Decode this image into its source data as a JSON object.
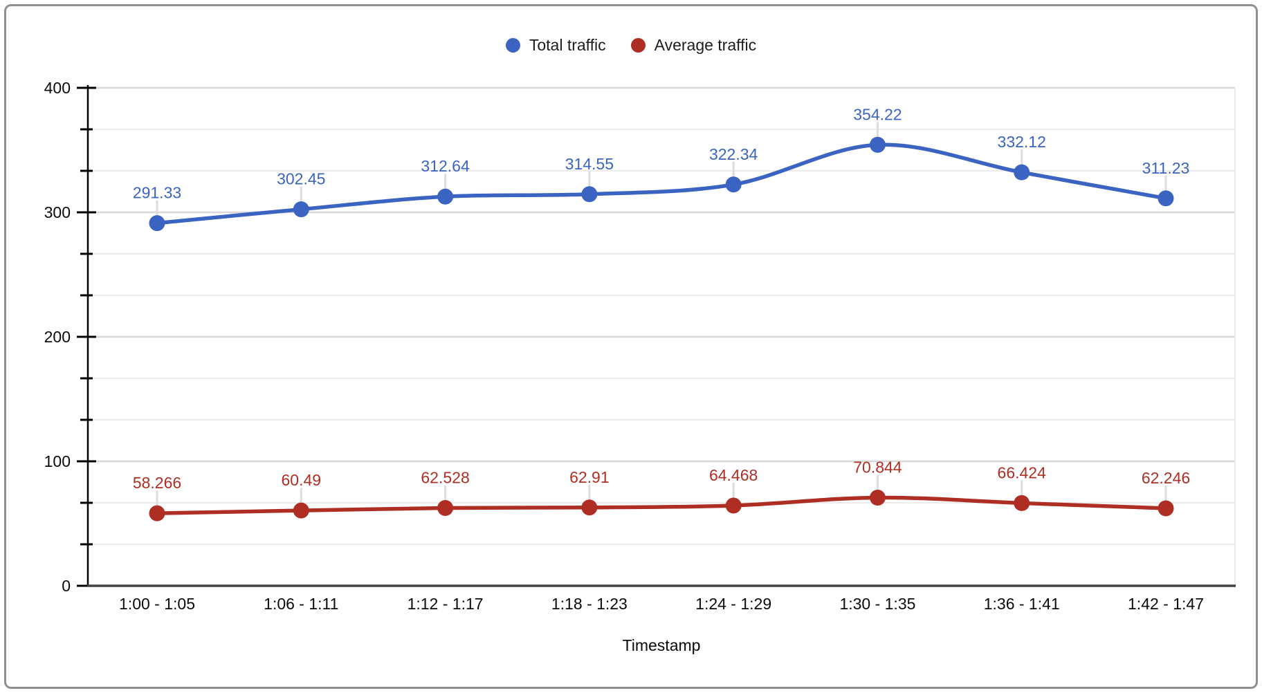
{
  "chart_data": {
    "type": "line",
    "smooth": true,
    "point_labels": true,
    "title": "",
    "xlabel": "Timestamp",
    "ylabel": "",
    "categories": [
      "1:00 - 1:05",
      "1:06 - 1:11",
      "1:12 - 1:17",
      "1:18 - 1:23",
      "1:24 - 1:29",
      "1:30 - 1:35",
      "1:36 - 1:41",
      "1:42 - 1:47"
    ],
    "series": [
      {
        "name": "Total traffic",
        "color": "#3B63C1",
        "values": [
          291.33,
          302.45,
          312.64,
          314.55,
          322.34,
          354.22,
          332.12,
          311.23
        ],
        "labels": [
          "291.33",
          "302.45",
          "312.64",
          "314.55",
          "322.34",
          "354.22",
          "332.12",
          "311.23"
        ]
      },
      {
        "name": "Average traffic",
        "color": "#AF2E24",
        "values": [
          58.266,
          60.49,
          62.528,
          62.91,
          64.468,
          70.844,
          66.424,
          62.246
        ],
        "labels": [
          "58.266",
          "60.49",
          "62.528",
          "62.91",
          "64.468",
          "70.844",
          "66.424",
          "62.246"
        ]
      }
    ],
    "ylim": [
      0,
      400
    ],
    "y_major_ticks": [
      0,
      100,
      200,
      300,
      400
    ],
    "y_minor_divisions": 3,
    "grid": true,
    "legend_position": "top"
  },
  "style": {
    "background": "#ffffff",
    "frame_border_color": "#8f8f8f",
    "major_grid_color": "#d8d8d8",
    "minor_grid_color": "#ebebeb",
    "axis_color": "#000000",
    "baseline_color": "#404040",
    "text_color": "#0a0a0a",
    "leader_color": "#dcdcdc"
  }
}
